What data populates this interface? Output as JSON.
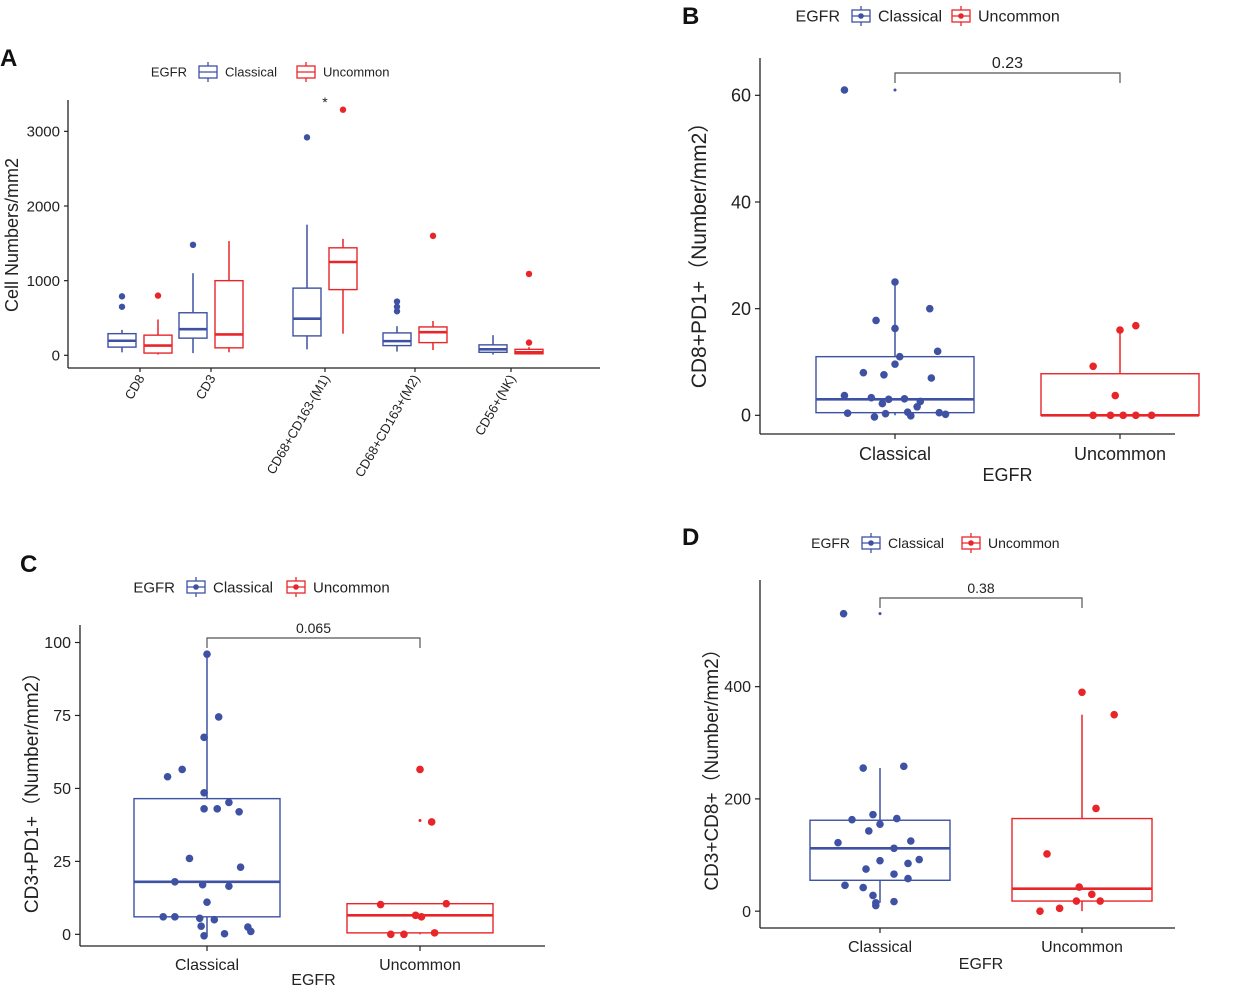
{
  "colors": {
    "classical": "#3F51A3",
    "uncommon": "#E8262A",
    "axis": "#222222",
    "bracket": "#555555"
  },
  "chart_data": [
    {
      "panel": "A",
      "type": "box",
      "legend": {
        "title": "EGFR",
        "entries": [
          "Classical",
          "Uncommon"
        ],
        "placement": "top"
      },
      "ylabel": "Cell Numbers/mm2",
      "xlabel": "",
      "ylim": [
        -170,
        3420
      ],
      "yticks": [
        0,
        1000,
        2000,
        3000
      ],
      "categories": [
        "CD8",
        "CD3",
        "CD68+CD163-(M1)",
        "CD68+CD163+(M2)",
        "CD56+(NK)"
      ],
      "series": [
        {
          "name": "Classical",
          "boxes": [
            {
              "min": 40,
              "q1": 110,
              "median": 195,
              "q3": 290,
              "max": 340,
              "outliers": [
                650,
                790
              ]
            },
            {
              "min": 30,
              "q1": 230,
              "median": 350,
              "q3": 570,
              "max": 1100,
              "outliers": [
                1480
              ]
            },
            {
              "min": 80,
              "q1": 260,
              "median": 490,
              "q3": 900,
              "max": 1750,
              "outliers": [
                2920
              ]
            },
            {
              "min": 50,
              "q1": 130,
              "median": 190,
              "q3": 300,
              "max": 390,
              "outliers": [
                590,
                650,
                720
              ]
            },
            {
              "min": 10,
              "q1": 40,
              "median": 80,
              "q3": 140,
              "max": 270,
              "outliers": []
            }
          ]
        },
        {
          "name": "Uncommon",
          "boxes": [
            {
              "min": 10,
              "q1": 30,
              "median": 130,
              "q3": 270,
              "max": 480,
              "outliers": [
                800
              ]
            },
            {
              "min": 40,
              "q1": 100,
              "median": 280,
              "q3": 1000,
              "max": 1530,
              "outliers": []
            },
            {
              "min": 290,
              "q1": 880,
              "median": 1250,
              "q3": 1440,
              "max": 1560,
              "outliers": [
                3290
              ]
            },
            {
              "min": 70,
              "q1": 170,
              "median": 310,
              "q3": 380,
              "max": 460,
              "outliers": [
                1600
              ]
            },
            {
              "min": 10,
              "q1": 20,
              "median": 40,
              "q3": 80,
              "max": 110,
              "outliers": [
                170,
                1090
              ]
            }
          ]
        }
      ],
      "annotations": [
        {
          "text": "*",
          "category": "CD68+CD163-(M1)",
          "y": 3380
        }
      ]
    },
    {
      "panel": "B",
      "type": "box+jitter",
      "legend": {
        "title": "EGFR",
        "entries": [
          "Classical",
          "Uncommon"
        ],
        "placement": "top"
      },
      "ylabel": "CD8+PD1+（Number/mm2）",
      "xlabel": "EGFR",
      "ylim": [
        -3.5,
        67
      ],
      "yticks": [
        0,
        20,
        40,
        60
      ],
      "categories": [
        "Classical",
        "Uncommon"
      ],
      "series": [
        {
          "name": "Classical",
          "box": {
            "min": 0,
            "q1": 0.5,
            "median": 3,
            "q3": 11,
            "max": 25,
            "outliers": [
              61
            ]
          },
          "points": [
            [
              -0.32,
              61
            ],
            [
              0.0,
              25
            ],
            [
              0.22,
              20
            ],
            [
              -0.12,
              17.8
            ],
            [
              0.0,
              16.3
            ],
            [
              0.27,
              12
            ],
            [
              0.03,
              11
            ],
            [
              0.0,
              9.6
            ],
            [
              -0.2,
              8
            ],
            [
              -0.07,
              7.6
            ],
            [
              0.23,
              7
            ],
            [
              -0.32,
              3.7
            ],
            [
              -0.15,
              3.3
            ],
            [
              -0.04,
              3
            ],
            [
              0.06,
              3.1
            ],
            [
              0.16,
              2.6
            ],
            [
              -0.08,
              2.2
            ],
            [
              0.14,
              1.6
            ],
            [
              -0.3,
              0.4
            ],
            [
              -0.06,
              0.3
            ],
            [
              0.08,
              0.6
            ],
            [
              0.28,
              0.5
            ],
            [
              0.32,
              0.2
            ],
            [
              0.1,
              -0.1
            ],
            [
              -0.13,
              -0.3
            ]
          ]
        },
        {
          "name": "Uncommon",
          "box": {
            "min": 0,
            "q1": 0,
            "median": 0,
            "q3": 7.8,
            "max": 16,
            "outliers": []
          },
          "points": [
            [
              0.0,
              16
            ],
            [
              0.1,
              16.8
            ],
            [
              -0.17,
              9.2
            ],
            [
              -0.03,
              3.7
            ],
            [
              -0.17,
              0
            ],
            [
              -0.06,
              0
            ],
            [
              0.02,
              0
            ],
            [
              0.1,
              0
            ],
            [
              0.2,
              0
            ]
          ]
        }
      ],
      "comparison": {
        "p_value": "0.23",
        "between": [
          "Classical",
          "Uncommon"
        ]
      }
    },
    {
      "panel": "C",
      "type": "box+jitter",
      "legend": {
        "title": "EGFR",
        "entries": [
          "Classical",
          "Uncommon"
        ],
        "placement": "top"
      },
      "ylabel": "CD3+PD1+（Number/mm2）",
      "xlabel": "EGFR",
      "ylim": [
        -4,
        106
      ],
      "yticks": [
        0,
        25,
        50,
        75,
        100
      ],
      "categories": [
        "Classical",
        "Uncommon"
      ],
      "series": [
        {
          "name": "Classical",
          "box": {
            "min": 0,
            "q1": 6,
            "median": 18,
            "q3": 46.5,
            "max": 96,
            "outliers": []
          },
          "points": [
            [
              0.0,
              96
            ],
            [
              0.08,
              74.5
            ],
            [
              -0.02,
              67.5
            ],
            [
              -0.17,
              56.5
            ],
            [
              -0.27,
              54
            ],
            [
              -0.02,
              48.5
            ],
            [
              0.15,
              45.2
            ],
            [
              -0.02,
              43
            ],
            [
              0.22,
              42
            ],
            [
              0.07,
              43
            ],
            [
              -0.12,
              26
            ],
            [
              0.23,
              23
            ],
            [
              -0.22,
              18
            ],
            [
              -0.03,
              17
            ],
            [
              0.15,
              16.5
            ],
            [
              0.0,
              11
            ],
            [
              -0.22,
              6
            ],
            [
              -0.05,
              5.5
            ],
            [
              0.05,
              5
            ],
            [
              -0.04,
              2.8
            ],
            [
              0.28,
              2.5
            ],
            [
              0.12,
              0.2
            ],
            [
              -0.02,
              -0.5
            ],
            [
              -0.3,
              6
            ],
            [
              0.3,
              1
            ]
          ]
        },
        {
          "name": "Uncommon",
          "box": {
            "min": 0,
            "q1": 0.5,
            "median": 6.5,
            "q3": 10.5,
            "max": 10.5,
            "outliers": [
              39,
              56.5
            ]
          },
          "points": [
            [
              0.0,
              56.5
            ],
            [
              0.08,
              38.5
            ],
            [
              -0.27,
              10.2
            ],
            [
              0.18,
              10.5
            ],
            [
              -0.03,
              6.5
            ],
            [
              0.01,
              6
            ],
            [
              -0.2,
              0
            ],
            [
              -0.11,
              0
            ],
            [
              0.1,
              0.5
            ]
          ]
        }
      ],
      "comparison": {
        "p_value": "0.065",
        "between": [
          "Classical",
          "Uncommon"
        ]
      }
    },
    {
      "panel": "D",
      "type": "box+jitter",
      "legend": {
        "title": "EGFR",
        "entries": [
          "Classical",
          "Uncommon"
        ],
        "placement": "top"
      },
      "ylabel": "CD3+CD8+（Number/mm2）",
      "xlabel": "EGFR",
      "ylim": [
        -30,
        590
      ],
      "yticks": [
        0,
        200,
        400
      ],
      "categories": [
        "Classical",
        "Uncommon"
      ],
      "series": [
        {
          "name": "Classical",
          "box": {
            "min": 15,
            "q1": 55,
            "median": 112,
            "q3": 162,
            "max": 255,
            "outliers": [
              530
            ]
          },
          "points": [
            [
              -0.26,
              530
            ],
            [
              -0.12,
              255
            ],
            [
              0.17,
              258
            ],
            [
              -0.05,
              172
            ],
            [
              -0.2,
              163
            ],
            [
              0.0,
              155
            ],
            [
              0.12,
              165
            ],
            [
              -0.08,
              143
            ],
            [
              0.22,
              125
            ],
            [
              -0.3,
              122
            ],
            [
              0.1,
              112
            ],
            [
              0.0,
              90
            ],
            [
              0.28,
              92
            ],
            [
              0.2,
              85
            ],
            [
              -0.1,
              75
            ],
            [
              0.1,
              66
            ],
            [
              0.2,
              58
            ],
            [
              -0.25,
              46
            ],
            [
              -0.12,
              42
            ],
            [
              -0.05,
              28
            ],
            [
              0.1,
              17
            ],
            [
              -0.03,
              15
            ],
            [
              -0.03,
              10
            ]
          ]
        },
        {
          "name": "Uncommon",
          "box": {
            "min": 0,
            "q1": 18,
            "median": 40,
            "q3": 165,
            "max": 350,
            "outliers": [
              390
            ]
          },
          "points": [
            [
              0.0,
              390
            ],
            [
              0.23,
              350
            ],
            [
              0.1,
              183
            ],
            [
              -0.25,
              102
            ],
            [
              -0.02,
              43
            ],
            [
              0.07,
              30
            ],
            [
              -0.04,
              18
            ],
            [
              0.13,
              18
            ],
            [
              -0.16,
              5
            ],
            [
              -0.3,
              0
            ]
          ]
        }
      ],
      "comparison": {
        "p_value": "0.38",
        "between": [
          "Classical",
          "Uncommon"
        ]
      }
    }
  ]
}
